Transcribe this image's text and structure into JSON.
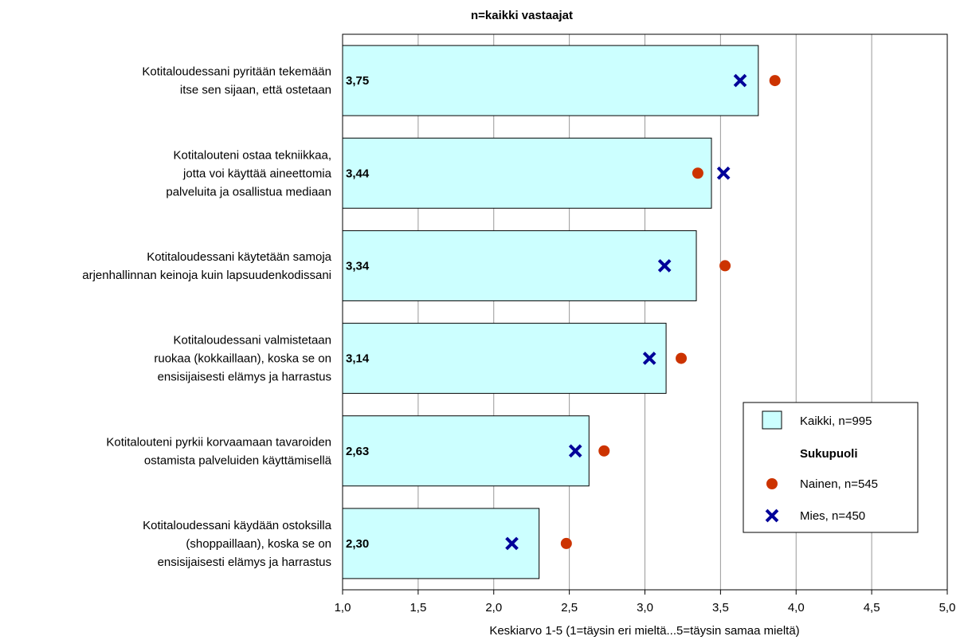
{
  "chart_data": {
    "type": "bar",
    "orientation": "horizontal",
    "title": "n=kaikki vastaajat",
    "xlabel": "Keskiarvo 1-5 (1=täysin eri mieltä...5=täysin samaa mieltä)",
    "xlim": [
      1.0,
      5.0
    ],
    "xticks": [
      "1,0",
      "1,5",
      "2,0",
      "2,5",
      "3,0",
      "3,5",
      "4,0",
      "4,5",
      "5,0"
    ],
    "xtick_values": [
      1.0,
      1.5,
      2.0,
      2.5,
      3.0,
      3.5,
      4.0,
      4.5,
      5.0
    ],
    "grid": true,
    "categories": [
      [
        "Kotitaloudessani pyritään tekemään",
        "itse sen sijaan, että ostetaan"
      ],
      [
        "Kotitalouteni ostaa tekniikkaa,",
        "jotta voi käyttää aineettomia",
        "palveluita ja osallistua mediaan"
      ],
      [
        "Kotitaloudessani käytetään samoja",
        "arjenhallinnan keinoja kuin lapsuudenkodissani"
      ],
      [
        "Kotitaloudessani valmistetaan",
        "ruokaa (kokkaillaan), koska se on",
        "ensisijaisesti elämys ja harrastus"
      ],
      [
        "Kotitalouteni pyrkii korvaamaan tavaroiden",
        "ostamista palveluiden käyttämisellä"
      ],
      [
        "Kotitaloudessani käydään ostoksilla",
        "(shoppaillaan), koska se on",
        "ensisijaisesti elämys ja harrastus"
      ]
    ],
    "series": [
      {
        "name": "Kaikki, n=995",
        "kind": "bar",
        "color": "#ccffff",
        "values": [
          3.75,
          3.44,
          3.34,
          3.14,
          2.63,
          2.3
        ],
        "labels": [
          "3,75",
          "3,44",
          "3,34",
          "3,14",
          "2,63",
          "2,30"
        ]
      },
      {
        "name": "Nainen, n=545",
        "kind": "marker-circle",
        "color": "#cc3300",
        "values": [
          3.86,
          3.35,
          3.53,
          3.24,
          2.73,
          2.48
        ]
      },
      {
        "name": "Mies, n=450",
        "kind": "marker-x",
        "color": "#000099",
        "values": [
          3.63,
          3.52,
          3.13,
          3.03,
          2.54,
          2.12
        ]
      }
    ],
    "legend": {
      "placement": "right",
      "group_heading": "Sukupuoli"
    }
  }
}
